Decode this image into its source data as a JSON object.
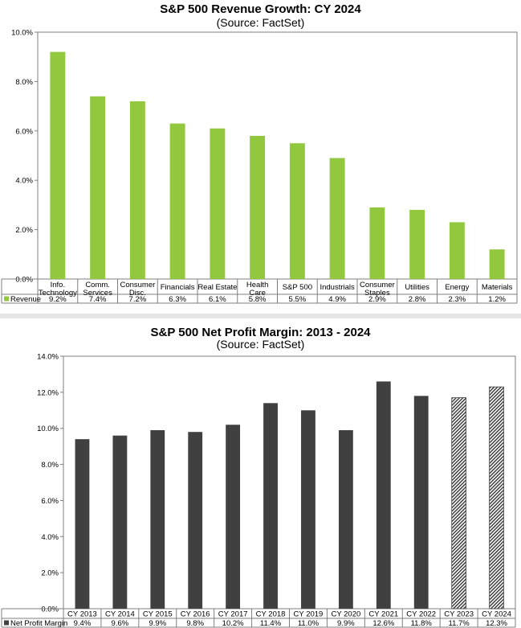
{
  "chart_data": [
    {
      "type": "bar",
      "title": "S&P 500 Revenue Growth: CY 2024",
      "subtitle": "(Source: FactSet)",
      "categories": [
        [
          "Info.",
          "Technology"
        ],
        [
          "Comm.",
          "Services"
        ],
        [
          "Consumer",
          "Disc."
        ],
        [
          "Financials"
        ],
        [
          "Real Estate"
        ],
        [
          "Health",
          "Care"
        ],
        [
          "S&P 500"
        ],
        [
          "Industrials"
        ],
        [
          "Consumer",
          "Staples"
        ],
        [
          "Utilities"
        ],
        [
          "Energy"
        ],
        [
          "Materials"
        ]
      ],
      "series": [
        {
          "name": "Revenue",
          "values": [
            9.2,
            7.4,
            7.2,
            6.3,
            6.1,
            5.8,
            5.5,
            4.9,
            2.9,
            2.8,
            2.3,
            1.2
          ],
          "labels": [
            "9.2%",
            "7.4%",
            "7.2%",
            "6.3%",
            "6.1%",
            "5.8%",
            "5.5%",
            "4.9%",
            "2.9%",
            "2.8%",
            "2.3%",
            "1.2%"
          ]
        }
      ],
      "ylim": [
        0,
        10
      ],
      "yticks": [
        "0.0%",
        "2.0%",
        "4.0%",
        "6.0%",
        "8.0%",
        "10.0%"
      ],
      "color": "#92c83e",
      "data_table": true
    },
    {
      "type": "bar",
      "title": "S&P 500 Net Profit Margin: 2013 - 2024",
      "subtitle": "(Source: FactSet)",
      "categories": [
        [
          "CY 2013"
        ],
        [
          "CY 2014"
        ],
        [
          "CY 2015"
        ],
        [
          "CY 2016"
        ],
        [
          "CY 2017"
        ],
        [
          "CY 2018"
        ],
        [
          "CY 2019"
        ],
        [
          "CY 2020"
        ],
        [
          "CY 2021"
        ],
        [
          "CY 2022"
        ],
        [
          "CY 2023"
        ],
        [
          "CY 2024"
        ]
      ],
      "series": [
        {
          "name": "Net Profit Margin",
          "values": [
            9.4,
            9.6,
            9.9,
            9.8,
            10.2,
            11.4,
            11.0,
            9.9,
            12.6,
            11.8,
            11.7,
            12.3
          ],
          "labels": [
            "9.4%",
            "9.6%",
            "9.9%",
            "9.8%",
            "10.2%",
            "11.4%",
            "11.0%",
            "9.9%",
            "12.6%",
            "11.8%",
            "11.7%",
            "12.3%"
          ],
          "estimated": [
            false,
            false,
            false,
            false,
            false,
            false,
            false,
            false,
            false,
            false,
            true,
            true
          ]
        }
      ],
      "ylim": [
        0,
        14
      ],
      "yticks": [
        "0.0%",
        "2.0%",
        "4.0%",
        "6.0%",
        "8.0%",
        "10.0%",
        "12.0%",
        "14.0%"
      ],
      "color": "#404040",
      "data_table": true
    }
  ]
}
